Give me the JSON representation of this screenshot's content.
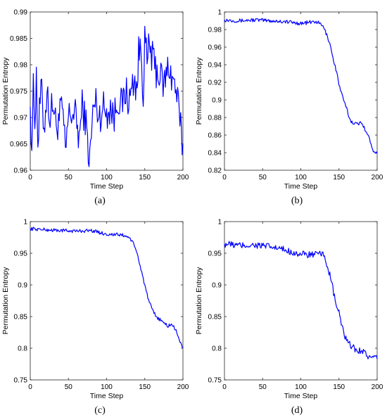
{
  "chart_data": [
    {
      "panel_label": "(a)",
      "type": "line",
      "xlabel": "Time Step",
      "ylabel": "Permutation Entropy",
      "xlim": [
        0,
        200
      ],
      "ylim": [
        0.96,
        0.99
      ],
      "xticks": [
        "0",
        "50",
        "100",
        "150",
        "200"
      ],
      "yticks": [
        "0.96",
        "0.965",
        "0.97",
        "0.975",
        "0.98",
        "0.985",
        "0.99"
      ],
      "series": [
        {
          "color": "#0000ff",
          "anchors": [
            [
              0,
              0.972
            ],
            [
              2,
              0.965
            ],
            [
              4,
              0.975
            ],
            [
              6,
              0.97
            ],
            [
              8,
              0.978
            ],
            [
              10,
              0.965
            ],
            [
              14,
              0.976
            ],
            [
              18,
              0.968
            ],
            [
              22,
              0.975
            ],
            [
              26,
              0.97
            ],
            [
              30,
              0.973
            ],
            [
              34,
              0.968
            ],
            [
              38,
              0.97
            ],
            [
              42,
              0.972
            ],
            [
              46,
              0.963
            ],
            [
              50,
              0.97
            ],
            [
              55,
              0.971
            ],
            [
              60,
              0.97
            ],
            [
              64,
              0.966
            ],
            [
              68,
              0.972
            ],
            [
              72,
              0.97
            ],
            [
              76,
              0.964
            ],
            [
              78,
              0.962
            ],
            [
              82,
              0.971
            ],
            [
              86,
              0.973
            ],
            [
              90,
              0.97
            ],
            [
              95,
              0.972
            ],
            [
              100,
              0.971
            ],
            [
              105,
              0.972
            ],
            [
              110,
              0.97
            ],
            [
              115,
              0.974
            ],
            [
              120,
              0.972
            ],
            [
              125,
              0.975
            ],
            [
              130,
              0.973
            ],
            [
              135,
              0.977
            ],
            [
              140,
              0.976
            ],
            [
              142,
              0.982
            ],
            [
              145,
              0.983
            ],
            [
              148,
              0.975
            ],
            [
              150,
              0.985
            ],
            [
              153,
              0.98
            ],
            [
              156,
              0.984
            ],
            [
              160,
              0.981
            ],
            [
              165,
              0.979
            ],
            [
              170,
              0.978
            ],
            [
              175,
              0.976
            ],
            [
              178,
              0.978
            ],
            [
              182,
              0.98
            ],
            [
              186,
              0.977
            ],
            [
              190,
              0.976
            ],
            [
              194,
              0.972
            ],
            [
              198,
              0.966
            ],
            [
              200,
              0.965
            ]
          ]
        }
      ]
    },
    {
      "panel_label": "(b)",
      "type": "line",
      "xlabel": "Time Step",
      "ylabel": "Permutation Entropy",
      "xlim": [
        0,
        200
      ],
      "ylim": [
        0.82,
        1.0
      ],
      "xticks": [
        "0",
        "50",
        "100",
        "150",
        "200"
      ],
      "yticks": [
        "0.82",
        "0.84",
        "0.86",
        "0.88",
        "0.9",
        "0.92",
        "0.94",
        "0.96",
        "0.98",
        "1"
      ],
      "series": [
        {
          "color": "#0000ff",
          "anchors": [
            [
              0,
              0.991
            ],
            [
              20,
              0.99
            ],
            [
              40,
              0.991
            ],
            [
              60,
              0.99
            ],
            [
              80,
              0.989
            ],
            [
              100,
              0.987
            ],
            [
              120,
              0.989
            ],
            [
              128,
              0.985
            ],
            [
              132,
              0.978
            ],
            [
              138,
              0.965
            ],
            [
              142,
              0.948
            ],
            [
              146,
              0.935
            ],
            [
              150,
              0.918
            ],
            [
              155,
              0.902
            ],
            [
              160,
              0.89
            ],
            [
              165,
              0.876
            ],
            [
              170,
              0.874
            ],
            [
              175,
              0.872
            ],
            [
              180,
              0.875
            ],
            [
              185,
              0.865
            ],
            [
              190,
              0.855
            ],
            [
              195,
              0.843
            ],
            [
              200,
              0.839
            ]
          ]
        }
      ]
    },
    {
      "panel_label": "(c)",
      "type": "line",
      "xlabel": "Time Step",
      "ylabel": "Permutation Entropy",
      "xlim": [
        0,
        200
      ],
      "ylim": [
        0.75,
        1.0
      ],
      "xticks": [
        "0",
        "50",
        "100",
        "150",
        "200"
      ],
      "yticks": [
        "0.75",
        "0.8",
        "0.85",
        "0.9",
        "0.95",
        "1"
      ],
      "series": [
        {
          "color": "#0000ff",
          "anchors": [
            [
              0,
              0.989
            ],
            [
              20,
              0.987
            ],
            [
              40,
              0.986
            ],
            [
              60,
              0.985
            ],
            [
              80,
              0.986
            ],
            [
              100,
              0.98
            ],
            [
              120,
              0.979
            ],
            [
              130,
              0.975
            ],
            [
              135,
              0.965
            ],
            [
              140,
              0.95
            ],
            [
              145,
              0.925
            ],
            [
              150,
              0.9
            ],
            [
              155,
              0.875
            ],
            [
              160,
              0.86
            ],
            [
              165,
              0.85
            ],
            [
              170,
              0.845
            ],
            [
              175,
              0.84
            ],
            [
              180,
              0.835
            ],
            [
              185,
              0.838
            ],
            [
              190,
              0.83
            ],
            [
              195,
              0.815
            ],
            [
              200,
              0.8
            ]
          ]
        }
      ]
    },
    {
      "panel_label": "(d)",
      "type": "line",
      "xlabel": "Time Step",
      "ylabel": "Permutation Entropy",
      "xlim": [
        0,
        200
      ],
      "ylim": [
        0.75,
        1.0
      ],
      "xticks": [
        "0",
        "50",
        "100",
        "150",
        "200"
      ],
      "yticks": [
        "0.75",
        "0.8",
        "0.85",
        "0.9",
        "0.95",
        "1"
      ],
      "series": [
        {
          "color": "#0000ff",
          "anchors": [
            [
              0,
              0.965
            ],
            [
              20,
              0.962
            ],
            [
              40,
              0.963
            ],
            [
              60,
              0.96
            ],
            [
              80,
              0.955
            ],
            [
              100,
              0.948
            ],
            [
              120,
              0.948
            ],
            [
              130,
              0.948
            ],
            [
              135,
              0.93
            ],
            [
              140,
              0.905
            ],
            [
              145,
              0.875
            ],
            [
              150,
              0.855
            ],
            [
              155,
              0.83
            ],
            [
              160,
              0.81
            ],
            [
              165,
              0.805
            ],
            [
              170,
              0.8
            ],
            [
              175,
              0.795
            ],
            [
              180,
              0.798
            ],
            [
              190,
              0.785
            ],
            [
              200,
              0.783
            ]
          ]
        }
      ]
    }
  ]
}
